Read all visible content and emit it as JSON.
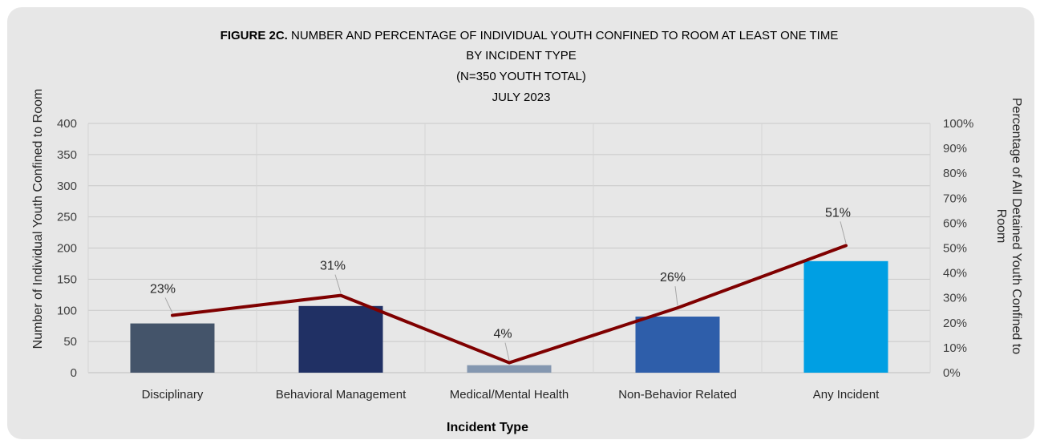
{
  "chart_data": {
    "type": "bar",
    "title": {
      "bold_prefix": "FIGURE 2C.",
      "line1": "NUMBER AND PERCENTAGE OF INDIVIDUAL YOUTH CONFINED TO ROOM AT LEAST ONE TIME",
      "line2": "BY INCIDENT TYPE",
      "line3": "(N=350 YOUTH TOTAL)",
      "line4": "JULY  2023"
    },
    "xlabel": "Incident Type",
    "ylabel": "Number of Individual Youth Confined to Room",
    "y2label": [
      "Percentage of All Detained Youth Confined to",
      "Room"
    ],
    "categories": [
      "Disciplinary",
      "Behavioral Management",
      "Medical/Mental Health",
      "Non-Behavior Related",
      "Any Incident"
    ],
    "series": [
      {
        "type": "bar",
        "axis": "left",
        "values": [
          79,
          107,
          12,
          90,
          179
        ],
        "colors": [
          "#44546a",
          "#203064",
          "#8497b0",
          "#2e5eaa",
          "#009fe3"
        ]
      },
      {
        "type": "line",
        "axis": "right",
        "values": [
          0.23,
          0.31,
          0.04,
          0.26,
          0.51
        ],
        "labels": [
          "23%",
          "31%",
          "4%",
          "26%",
          "51%"
        ],
        "color": "#7f0000"
      }
    ],
    "ylim": [
      0,
      400
    ],
    "yticks": [
      0,
      50,
      100,
      150,
      200,
      250,
      300,
      350,
      400
    ],
    "y2lim": [
      0,
      1
    ],
    "y2ticks": [
      "0%",
      "10%",
      "20%",
      "30%",
      "40%",
      "50%",
      "60%",
      "70%",
      "80%",
      "90%",
      "100%"
    ],
    "grid": true,
    "legend": "none"
  }
}
